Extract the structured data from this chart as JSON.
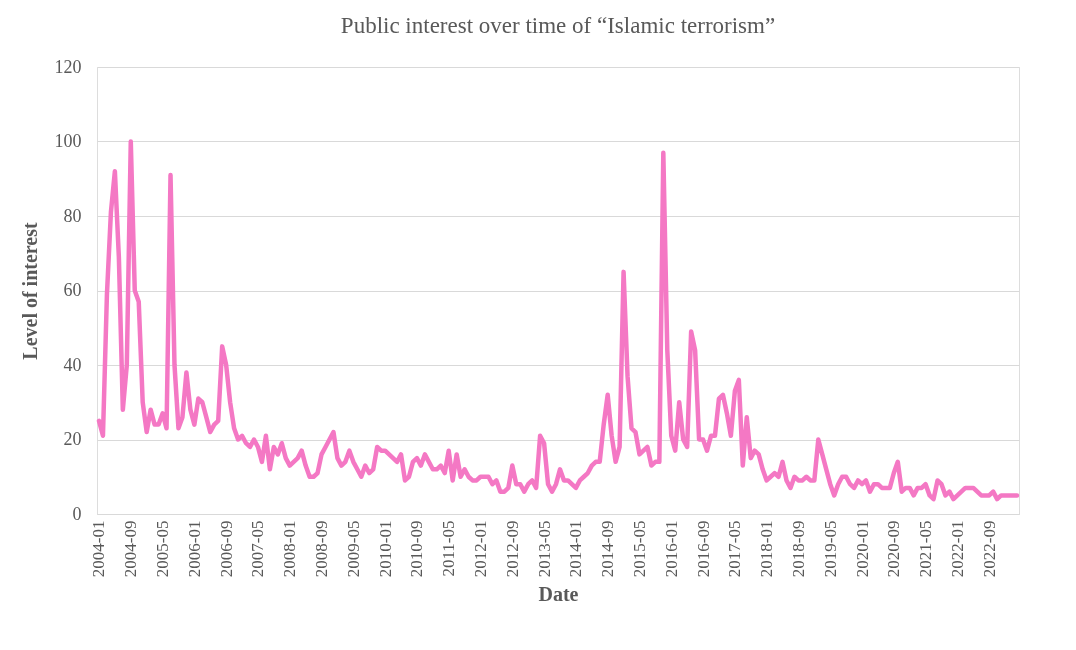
{
  "chart_data": {
    "type": "line",
    "title": "Public interest over time of “Islamic terrorism”",
    "xlabel": "Date",
    "ylabel": "Level of interest",
    "categories": [
      "2004-01",
      null,
      null,
      null,
      null,
      null,
      null,
      null,
      "2004-09",
      null,
      null,
      null,
      null,
      null,
      null,
      null,
      "2005-05",
      null,
      null,
      null,
      null,
      null,
      null,
      null,
      "2006-01",
      null,
      null,
      null,
      null,
      null,
      null,
      null,
      "2006-09",
      null,
      null,
      null,
      null,
      null,
      null,
      null,
      "2007-05",
      null,
      null,
      null,
      null,
      null,
      null,
      null,
      "2008-01",
      null,
      null,
      null,
      null,
      null,
      null,
      null,
      "2008-09",
      null,
      null,
      null,
      null,
      null,
      null,
      null,
      "2009-05",
      null,
      null,
      null,
      null,
      null,
      null,
      null,
      "2010-01",
      null,
      null,
      null,
      null,
      null,
      null,
      null,
      "2010-09",
      null,
      null,
      null,
      null,
      null,
      null,
      null,
      "2011-05",
      null,
      null,
      null,
      null,
      null,
      null,
      null,
      "2012-01",
      null,
      null,
      null,
      null,
      null,
      null,
      null,
      "2012-09",
      null,
      null,
      null,
      null,
      null,
      null,
      null,
      "2013-05",
      null,
      null,
      null,
      null,
      null,
      null,
      null,
      "2014-01",
      null,
      null,
      null,
      null,
      null,
      null,
      null,
      "2014-09",
      null,
      null,
      null,
      null,
      null,
      null,
      null,
      "2015-05",
      null,
      null,
      null,
      null,
      null,
      null,
      null,
      "2016-01",
      null,
      null,
      null,
      null,
      null,
      null,
      null,
      "2016-09",
      null,
      null,
      null,
      null,
      null,
      null,
      null,
      "2017-05",
      null,
      null,
      null,
      null,
      null,
      null,
      null,
      "2018-01",
      null,
      null,
      null,
      null,
      null,
      null,
      null,
      "2018-09",
      null,
      null,
      null,
      null,
      null,
      null,
      null,
      "2019-05",
      null,
      null,
      null,
      null,
      null,
      null,
      null,
      "2020-01",
      null,
      null,
      null,
      null,
      null,
      null,
      null,
      "2020-09",
      null,
      null,
      null,
      null,
      null,
      null,
      null,
      "2021-05",
      null,
      null,
      null,
      null,
      null,
      null,
      null,
      "2022-01",
      null,
      null,
      null,
      null,
      null,
      null,
      null,
      "2022-09",
      null,
      null,
      null,
      null,
      null,
      null,
      null
    ],
    "series": [
      {
        "color": "#f478c4",
        "values": [
          25,
          21,
          59,
          81,
          92,
          69,
          28,
          40,
          100,
          60,
          57,
          30,
          22,
          28,
          24,
          24,
          27,
          23,
          91,
          40,
          23,
          26,
          38,
          28,
          24,
          31,
          30,
          26,
          22,
          24,
          25,
          45,
          40,
          30,
          23,
          20,
          21,
          19,
          18,
          20,
          18,
          14,
          21,
          12,
          18,
          16,
          19,
          15,
          13,
          14,
          15,
          17,
          13,
          10,
          10,
          11,
          16,
          18,
          20,
          22,
          15,
          13,
          14,
          17,
          14,
          12,
          10,
          13,
          11,
          12,
          18,
          17,
          17,
          16,
          15,
          14,
          16,
          9,
          10,
          14,
          15,
          13,
          16,
          14,
          12,
          12,
          13,
          11,
          17,
          9,
          16,
          10,
          12,
          10,
          9,
          9,
          10,
          10,
          10,
          8,
          9,
          6,
          6,
          7,
          13,
          8,
          8,
          6,
          8,
          9,
          7,
          21,
          19,
          8,
          6,
          8,
          12,
          9,
          9,
          8,
          7,
          9,
          10,
          11,
          13,
          14,
          14,
          24,
          32,
          21,
          14,
          18,
          65,
          37,
          23,
          22,
          16,
          17,
          18,
          13,
          14,
          14,
          97,
          44,
          21,
          17,
          30,
          20,
          18,
          49,
          44,
          20,
          20,
          17,
          21,
          21,
          31,
          32,
          27,
          21,
          33,
          36,
          13,
          26,
          15,
          17,
          16,
          12,
          9,
          10,
          11,
          10,
          14,
          9,
          7,
          10,
          9,
          9,
          10,
          9,
          9,
          20,
          16,
          12,
          8,
          5,
          8,
          10,
          10,
          8,
          7,
          9,
          8,
          9,
          6,
          8,
          8,
          7,
          7,
          7,
          11,
          14,
          6,
          7,
          7,
          5,
          7,
          7,
          8,
          5,
          4,
          9,
          8,
          5,
          6,
          4,
          5,
          6,
          7,
          7,
          7,
          6,
          5,
          5,
          5,
          6,
          4,
          5,
          5,
          5,
          5,
          5
        ]
      }
    ],
    "ylim": [
      0,
      120
    ],
    "yticks": [
      0,
      20,
      40,
      60,
      80,
      100,
      120
    ],
    "grid": "y",
    "legend": false,
    "marker": "none",
    "line_style": "solid"
  }
}
